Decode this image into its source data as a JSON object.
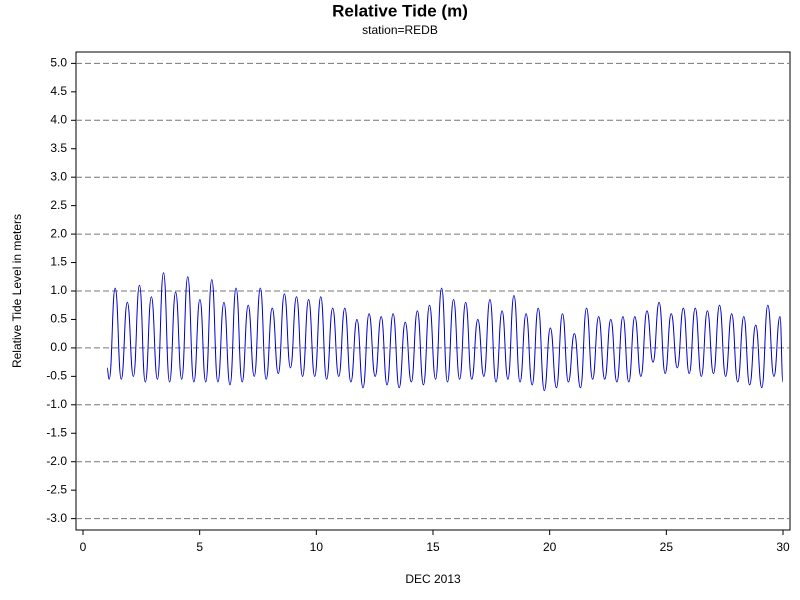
{
  "chart_data": {
    "type": "line",
    "title": "Relative Tide (m)",
    "subtitle": "station=REDB",
    "x_label": "DEC 2013",
    "y_label": "Relative Tide Level in meters",
    "xlim": [
      -0.3,
      30.3
    ],
    "ylim": [
      -3.2,
      5.2
    ],
    "xticks": [
      0,
      5,
      10,
      15,
      20,
      25,
      30
    ],
    "yticks": [
      {
        "value": -3,
        "label": "-3.0"
      },
      {
        "value": -2.5,
        "label": "-2.5"
      },
      {
        "value": -2,
        "label": "-2.0"
      },
      {
        "value": -1.5,
        "label": "-1.5"
      },
      {
        "value": -1,
        "label": "-1.0"
      },
      {
        "value": -0.5,
        "label": "-0.5"
      },
      {
        "value": 0,
        "label": "0.0"
      },
      {
        "value": 0.5,
        "label": "0.5"
      },
      {
        "value": 1,
        "label": "1.0"
      },
      {
        "value": 1.5,
        "label": "1.5"
      },
      {
        "value": 2,
        "label": "2.0"
      },
      {
        "value": 2.5,
        "label": "2.5"
      },
      {
        "value": 3,
        "label": "3.0"
      },
      {
        "value": 3.5,
        "label": "3.5"
      },
      {
        "value": 4,
        "label": "4.0"
      },
      {
        "value": 4.5,
        "label": "4.5"
      },
      {
        "value": 5,
        "label": "5.0"
      }
    ],
    "grid": true,
    "color": "#0000cc",
    "x": [
      1.03,
      1.12,
      1.38,
      1.64,
      1.9,
      2.16,
      2.42,
      2.67,
      2.93,
      3.19,
      3.45,
      3.71,
      3.97,
      4.23,
      4.49,
      4.75,
      5.01,
      5.26,
      5.52,
      5.78,
      6.04,
      6.3,
      6.56,
      6.82,
      7.08,
      7.34,
      7.6,
      7.85,
      8.11,
      8.37,
      8.63,
      8.89,
      9.15,
      9.41,
      9.67,
      9.93,
      10.19,
      10.44,
      10.7,
      10.96,
      11.22,
      11.48,
      11.74,
      12.0,
      12.26,
      12.52,
      12.78,
      13.03,
      13.29,
      13.55,
      13.81,
      14.07,
      14.33,
      14.59,
      14.85,
      15.11,
      15.37,
      15.62,
      15.88,
      16.14,
      16.4,
      16.66,
      16.92,
      17.18,
      17.44,
      17.7,
      17.96,
      18.21,
      18.47,
      18.73,
      18.99,
      19.25,
      19.51,
      19.77,
      20.03,
      20.29,
      20.55,
      20.8,
      21.06,
      21.32,
      21.58,
      21.84,
      22.1,
      22.36,
      22.62,
      22.88,
      23.14,
      23.39,
      23.65,
      23.91,
      24.17,
      24.43,
      24.69,
      24.95,
      25.21,
      25.47,
      25.73,
      25.98,
      26.24,
      26.5,
      26.76,
      27.02,
      27.28,
      27.54,
      27.8,
      28.06,
      28.32,
      28.57,
      28.83,
      29.09,
      29.35,
      29.61,
      29.87,
      30.0
    ],
    "values": [
      -0.35,
      -0.55,
      1.05,
      -0.55,
      0.8,
      -0.5,
      1.1,
      -0.6,
      0.9,
      -0.55,
      1.32,
      -0.6,
      0.98,
      -0.55,
      1.25,
      -0.6,
      0.85,
      -0.6,
      1.2,
      -0.6,
      0.8,
      -0.65,
      1.05,
      -0.6,
      0.75,
      -0.5,
      1.05,
      -0.55,
      0.7,
      -0.45,
      0.95,
      -0.35,
      0.9,
      -0.5,
      0.85,
      -0.5,
      0.9,
      -0.55,
      0.7,
      -0.5,
      0.7,
      -0.6,
      0.5,
      -0.7,
      0.6,
      -0.5,
      0.55,
      -0.65,
      0.6,
      -0.7,
      0.45,
      -0.6,
      0.65,
      -0.65,
      0.75,
      -0.55,
      1.05,
      -0.6,
      0.85,
      -0.55,
      0.8,
      -0.55,
      0.5,
      -0.5,
      0.85,
      -0.6,
      0.65,
      -0.55,
      0.92,
      -0.6,
      0.6,
      -0.65,
      0.7,
      -0.75,
      0.35,
      -0.7,
      0.6,
      -0.6,
      0.25,
      -0.7,
      0.7,
      -0.55,
      0.55,
      -0.55,
      0.5,
      -0.6,
      0.55,
      -0.6,
      0.55,
      -0.5,
      0.65,
      -0.25,
      0.8,
      -0.45,
      0.6,
      -0.35,
      0.7,
      -0.45,
      0.7,
      -0.5,
      0.65,
      -0.45,
      0.75,
      -0.5,
      0.6,
      -0.6,
      0.55,
      -0.65,
      0.4,
      -0.7,
      0.75,
      -0.5,
      0.55,
      -0.6
    ]
  }
}
